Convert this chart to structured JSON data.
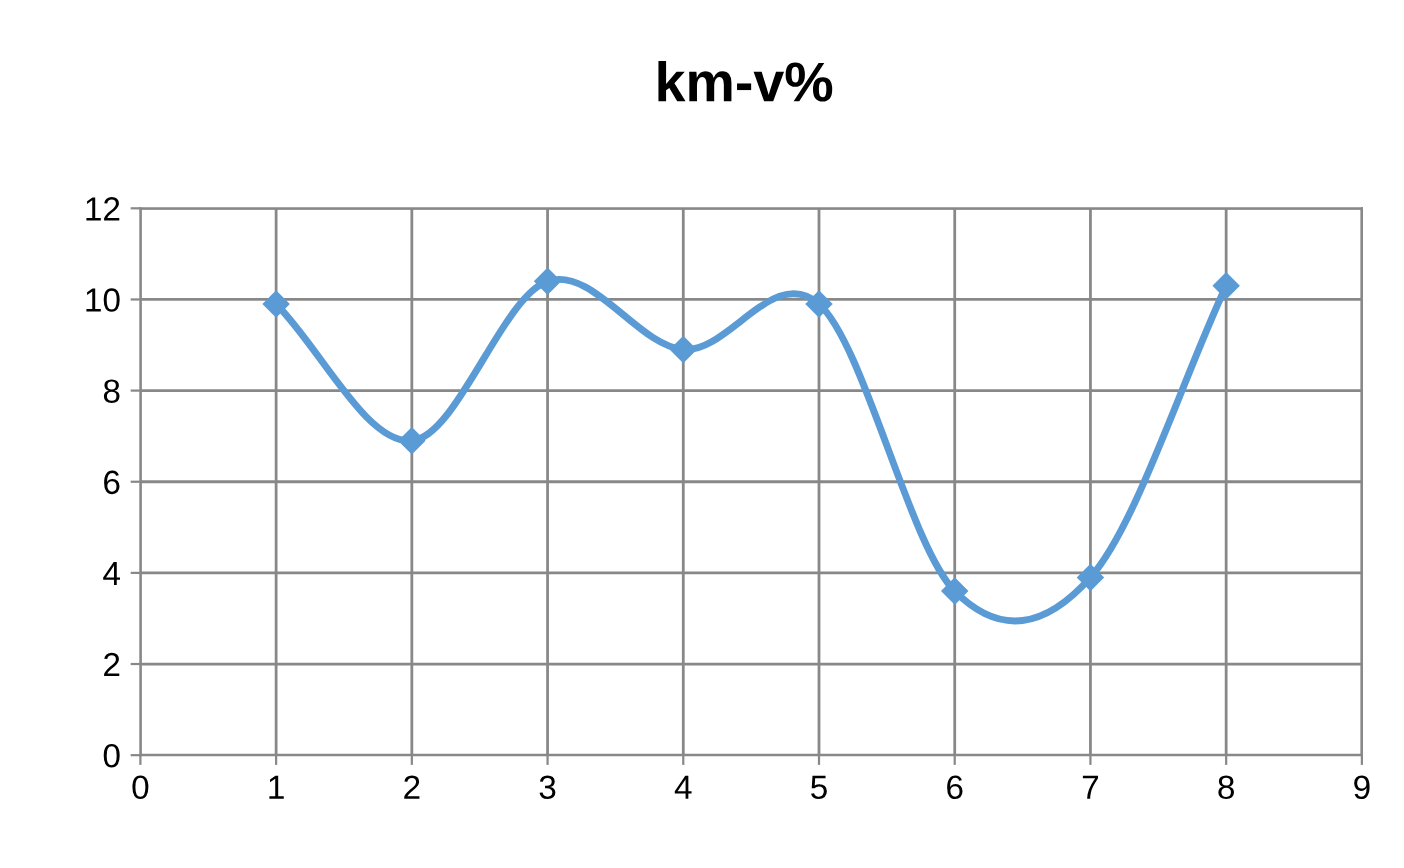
{
  "chart_data": {
    "type": "line",
    "title": "km-v%",
    "x": [
      1,
      2,
      3,
      4,
      5,
      6,
      7,
      8
    ],
    "series": [
      {
        "color": "#5b9bd5",
        "values": [
          9.9,
          6.9,
          10.4,
          8.9,
          9.9,
          3.6,
          3.9,
          10.3
        ]
      }
    ],
    "xlim": [
      0,
      9
    ],
    "xticks": [
      0,
      1,
      2,
      3,
      4,
      5,
      6,
      7,
      8,
      9
    ],
    "ylim": [
      0,
      12
    ],
    "yticks": [
      0,
      2,
      4,
      6,
      8,
      10,
      12
    ],
    "grid": true,
    "marker": "diamond",
    "line_style": "solid",
    "legend": false
  }
}
